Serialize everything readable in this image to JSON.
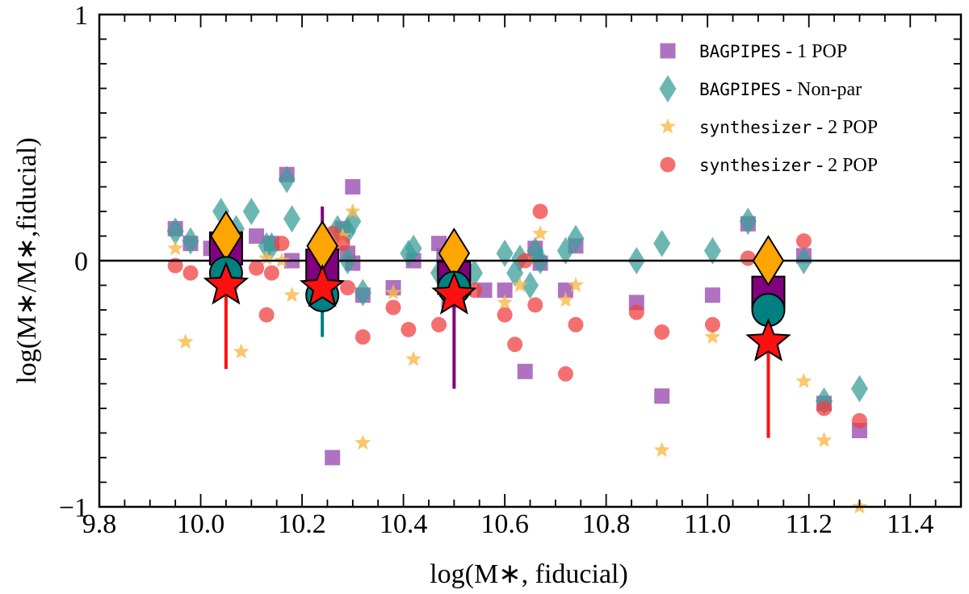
{
  "chart_data": {
    "type": "scatter",
    "title": "",
    "xlabel": "log(M∗, fiducial)",
    "ylabel": "log(M∗/M∗,fiducial)",
    "xlim": [
      9.8,
      11.5
    ],
    "ylim": [
      -1,
      1
    ],
    "x_ticks": [
      "9.8",
      "10.0",
      "10.2",
      "10.4",
      "10.6",
      "10.8",
      "11.0",
      "11.2",
      "11.4"
    ],
    "y_ticks": [
      "−1",
      "0",
      "1"
    ],
    "x_tick_values": [
      9.8,
      10.0,
      10.2,
      10.4,
      10.6,
      10.8,
      11.0,
      11.2,
      11.4
    ],
    "y_tick_values": [
      -1,
      0,
      1
    ],
    "reference_line_y": 0,
    "legend_position": "top-right",
    "colors": {
      "bagpipes_1pop": "#9b4fb0",
      "bagpipes_nonpar": "#3c9f9a",
      "synth_stars": "#f9b94a",
      "synth_circles": "#f04040",
      "binned_square": "#800080",
      "binned_diamond": "#ffa500",
      "binned_circle": "#008080",
      "binned_star": "#ff1010"
    },
    "legend": [
      {
        "mono": "BAGPIPES",
        "rest": " - 1 POP",
        "marker": "square"
      },
      {
        "mono": "BAGPIPES",
        "rest": " - Non-par",
        "marker": "diamond"
      },
      {
        "mono": "synthesizer",
        "rest": " - 2 POP",
        "marker": "star"
      },
      {
        "mono": "synthesizer",
        "rest": " - 2 POP",
        "marker": "circle"
      }
    ],
    "series": [
      {
        "name": "BAGPIPES - 1 POP",
        "marker": "square",
        "points": [
          [
            9.95,
            0.13
          ],
          [
            9.98,
            0.07
          ],
          [
            10.02,
            0.05
          ],
          [
            10.06,
            0.02
          ],
          [
            10.11,
            0.1
          ],
          [
            10.14,
            0.07
          ],
          [
            10.17,
            0.35
          ],
          [
            10.18,
            0.0
          ],
          [
            10.26,
            -0.8
          ],
          [
            10.28,
            0.13
          ],
          [
            10.29,
            0.03
          ],
          [
            10.3,
            0.3
          ],
          [
            10.3,
            -0.01
          ],
          [
            10.32,
            -0.14
          ],
          [
            10.38,
            -0.11
          ],
          [
            10.42,
            0.0
          ],
          [
            10.47,
            0.07
          ],
          [
            10.48,
            0.02
          ],
          [
            10.49,
            -0.16
          ],
          [
            10.56,
            -0.12
          ],
          [
            10.6,
            -0.12
          ],
          [
            10.64,
            -0.45
          ],
          [
            10.66,
            0.05
          ],
          [
            10.67,
            -0.01
          ],
          [
            10.72,
            -0.12
          ],
          [
            10.74,
            0.06
          ],
          [
            10.86,
            -0.17
          ],
          [
            10.91,
            -0.55
          ],
          [
            11.01,
            -0.14
          ],
          [
            11.08,
            0.15
          ],
          [
            11.19,
            0.02
          ],
          [
            11.23,
            -0.58
          ],
          [
            11.3,
            -0.69
          ]
        ]
      },
      {
        "name": "BAGPIPES - Non-par",
        "marker": "diamond",
        "points": [
          [
            9.95,
            0.12
          ],
          [
            9.98,
            0.08
          ],
          [
            10.04,
            0.2
          ],
          [
            10.07,
            0.13
          ],
          [
            10.1,
            0.2
          ],
          [
            10.13,
            0.06
          ],
          [
            10.14,
            0.06
          ],
          [
            10.17,
            0.33
          ],
          [
            10.18,
            0.17
          ],
          [
            10.27,
            0.13
          ],
          [
            10.29,
            0.12
          ],
          [
            10.29,
            0.0
          ],
          [
            10.3,
            0.16
          ],
          [
            10.32,
            -0.13
          ],
          [
            10.41,
            0.03
          ],
          [
            10.42,
            0.05
          ],
          [
            10.47,
            -0.05
          ],
          [
            10.54,
            -0.05
          ],
          [
            10.6,
            0.03
          ],
          [
            10.62,
            -0.05
          ],
          [
            10.63,
            0.01
          ],
          [
            10.65,
            -0.1
          ],
          [
            10.66,
            0.04
          ],
          [
            10.67,
            0.0
          ],
          [
            10.72,
            0.04
          ],
          [
            10.74,
            0.09
          ],
          [
            10.86,
            0.0
          ],
          [
            10.91,
            0.07
          ],
          [
            11.01,
            0.04
          ],
          [
            11.08,
            0.16
          ],
          [
            11.19,
            0.0
          ],
          [
            11.23,
            -0.57
          ],
          [
            11.3,
            -0.52
          ]
        ]
      },
      {
        "name": "synthesizer - 2 POP (stars)",
        "marker": "star",
        "points": [
          [
            9.95,
            0.05
          ],
          [
            9.97,
            -0.33
          ],
          [
            10.03,
            -0.02
          ],
          [
            10.08,
            -0.37
          ],
          [
            10.13,
            0.01
          ],
          [
            10.16,
            0.0
          ],
          [
            10.18,
            -0.14
          ],
          [
            10.28,
            0.1
          ],
          [
            10.3,
            0.2
          ],
          [
            10.32,
            -0.74
          ],
          [
            10.38,
            -0.13
          ],
          [
            10.42,
            -0.4
          ],
          [
            10.48,
            -0.12
          ],
          [
            10.6,
            -0.17
          ],
          [
            10.63,
            -0.1
          ],
          [
            10.67,
            0.11
          ],
          [
            10.72,
            -0.16
          ],
          [
            10.74,
            -0.1
          ],
          [
            10.91,
            -0.77
          ],
          [
            11.01,
            -0.31
          ],
          [
            11.19,
            -0.49
          ],
          [
            11.23,
            -0.73
          ],
          [
            11.3,
            -1.0
          ]
        ]
      },
      {
        "name": "synthesizer - 2 POP (circles)",
        "marker": "circle",
        "points": [
          [
            9.95,
            -0.02
          ],
          [
            9.98,
            -0.05
          ],
          [
            10.04,
            -0.02
          ],
          [
            10.06,
            -0.1
          ],
          [
            10.11,
            -0.03
          ],
          [
            10.13,
            -0.22
          ],
          [
            10.14,
            -0.05
          ],
          [
            10.16,
            0.07
          ],
          [
            10.26,
            0.11
          ],
          [
            10.28,
            0.07
          ],
          [
            10.29,
            -0.11
          ],
          [
            10.32,
            -0.31
          ],
          [
            10.38,
            -0.19
          ],
          [
            10.41,
            -0.28
          ],
          [
            10.47,
            -0.26
          ],
          [
            10.48,
            -0.04
          ],
          [
            10.49,
            -0.1
          ],
          [
            10.54,
            -0.12
          ],
          [
            10.6,
            -0.22
          ],
          [
            10.62,
            -0.34
          ],
          [
            10.64,
            0.0
          ],
          [
            10.66,
            -0.18
          ],
          [
            10.67,
            0.2
          ],
          [
            10.72,
            -0.46
          ],
          [
            10.74,
            -0.26
          ],
          [
            10.86,
            -0.21
          ],
          [
            10.91,
            -0.29
          ],
          [
            11.01,
            -0.26
          ],
          [
            11.08,
            0.01
          ],
          [
            11.19,
            0.08
          ],
          [
            11.23,
            -0.6
          ],
          [
            11.3,
            -0.65
          ]
        ]
      }
    ],
    "binned": [
      {
        "x": 10.05,
        "square": 0.05,
        "diamond": 0.1,
        "circle": -0.05,
        "star": -0.1,
        "err_color": "red",
        "err_lo": -0.44,
        "err_hi": -0.1
      },
      {
        "x": 10.24,
        "square": -0.02,
        "diamond": 0.06,
        "circle": -0.14,
        "star": -0.11,
        "err_color": "multi",
        "err_lo": -0.31,
        "err_hi": 0.22
      },
      {
        "x": 10.5,
        "square": -0.07,
        "diamond": 0.03,
        "circle": -0.11,
        "star": -0.14,
        "err_color": "purple",
        "err_lo": -0.52,
        "err_hi": -0.14
      },
      {
        "x": 11.12,
        "square": -0.13,
        "diamond": 0.0,
        "circle": -0.2,
        "star": -0.33,
        "err_color": "red",
        "err_lo": -0.72,
        "err_hi": -0.33
      }
    ]
  }
}
